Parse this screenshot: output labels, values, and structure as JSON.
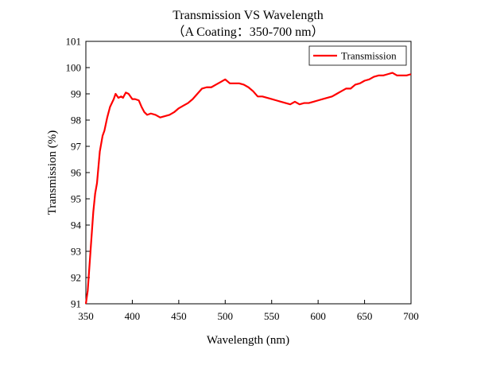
{
  "chart_data": {
    "type": "line",
    "title": "Transmission VS Wavelength",
    "subtitle": "（A Coating：350-700 nm）",
    "x_label": "Wavelength (nm)",
    "y_label": "Transmission (%)",
    "x": [
      350,
      352,
      355,
      358,
      360,
      362,
      365,
      368,
      370,
      373,
      376,
      380,
      382,
      385,
      388,
      390,
      393,
      396,
      400,
      403,
      407,
      410,
      413,
      416,
      420,
      425,
      430,
      435,
      440,
      445,
      450,
      455,
      460,
      465,
      470,
      475,
      480,
      485,
      490,
      495,
      500,
      505,
      510,
      515,
      520,
      525,
      530,
      535,
      540,
      545,
      550,
      555,
      560,
      565,
      570,
      575,
      580,
      585,
      590,
      595,
      600,
      605,
      610,
      615,
      620,
      625,
      630,
      635,
      640,
      645,
      650,
      655,
      660,
      665,
      670,
      675,
      680,
      685,
      690,
      695,
      700
    ],
    "series": [
      {
        "name": "Transmission",
        "color": "#ff0000",
        "values": [
          91.0,
          91.5,
          93.0,
          94.5,
          95.2,
          95.6,
          96.8,
          97.4,
          97.6,
          98.1,
          98.5,
          98.8,
          99.0,
          98.85,
          98.9,
          98.85,
          99.05,
          99.0,
          98.8,
          98.8,
          98.75,
          98.5,
          98.3,
          98.2,
          98.25,
          98.2,
          98.1,
          98.15,
          98.2,
          98.3,
          98.45,
          98.55,
          98.65,
          98.8,
          99.0,
          99.2,
          99.25,
          99.25,
          99.35,
          99.45,
          99.55,
          99.4,
          99.4,
          99.4,
          99.35,
          99.25,
          99.1,
          98.9,
          98.9,
          98.85,
          98.8,
          98.75,
          98.7,
          98.65,
          98.6,
          98.7,
          98.6,
          98.65,
          98.65,
          98.7,
          98.75,
          98.8,
          98.85,
          98.9,
          99.0,
          99.1,
          99.2,
          99.2,
          99.35,
          99.4,
          99.5,
          99.55,
          99.65,
          99.7,
          99.7,
          99.75,
          99.8,
          99.7,
          99.7,
          99.7,
          99.75
        ]
      }
    ],
    "xlim": [
      350,
      700
    ],
    "ylim": [
      91,
      101
    ],
    "xticks": [
      350,
      400,
      450,
      500,
      550,
      600,
      650,
      700
    ],
    "yticks": [
      91,
      92,
      93,
      94,
      95,
      96,
      97,
      98,
      99,
      100,
      101
    ],
    "legend": "upper right",
    "grid": false
  }
}
